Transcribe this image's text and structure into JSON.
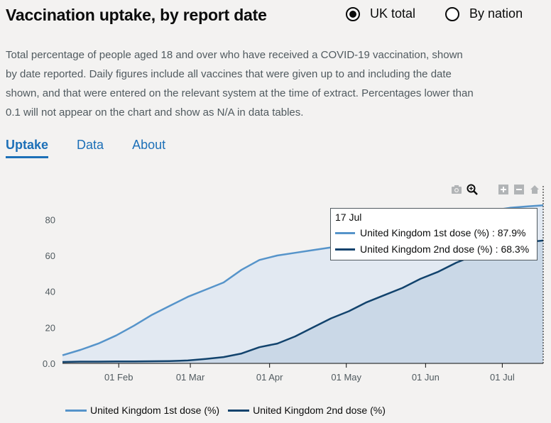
{
  "header": {
    "title": "Vaccination uptake, by report date",
    "radio_uk": "UK total",
    "radio_nation": "By nation"
  },
  "description": "Total percentage of people aged 18 and over who have received a COVID-19 vaccination, shown by date reported. Daily figures include all vaccines that were given up to and including the date shown, and that were entered on the relevant system at the time of extract. Percentages lower than 0.1 will not appear on the chart and show as N/A in data tables.",
  "tabs": [
    {
      "label": "Uptake",
      "active": true
    },
    {
      "label": "Data",
      "active": false
    },
    {
      "label": "About",
      "active": false
    }
  ],
  "toolbar": [
    "camera-icon",
    "zoom-icon",
    "zoom-in-icon",
    "zoom-out-icon",
    "home-icon"
  ],
  "tooltip": {
    "date": "17 Jul",
    "rows": [
      "United Kingdom 1st dose (%) : 87.9%",
      "United Kingdom 2nd dose (%) : 68.3%"
    ]
  },
  "colors": {
    "first_dose": "#5694ca",
    "second_dose": "#12436d",
    "first_fill": "#e2e9f2",
    "second_fill": "#c8d6e5"
  },
  "chart_data": {
    "type": "area",
    "x": [
      "2021-01-10",
      "2021-01-17",
      "2021-01-24",
      "2021-01-31",
      "2021-02-07",
      "2021-02-14",
      "2021-02-21",
      "2021-02-28",
      "2021-03-07",
      "2021-03-14",
      "2021-03-21",
      "2021-03-28",
      "2021-04-04",
      "2021-04-11",
      "2021-04-18",
      "2021-04-25",
      "2021-05-02",
      "2021-05-09",
      "2021-05-16",
      "2021-05-23",
      "2021-05-30",
      "2021-06-06",
      "2021-06-13",
      "2021-06-20",
      "2021-06-27",
      "2021-07-04",
      "2021-07-11",
      "2021-07-17"
    ],
    "series": [
      {
        "name": "United Kingdom 1st dose (%)",
        "values": [
          4.5,
          7.5,
          11,
          15.5,
          21,
          27,
          32,
          37,
          41,
          45,
          52,
          57.5,
          60,
          61.5,
          63,
          64.5,
          66.5,
          69,
          71,
          73,
          76,
          78.5,
          81,
          83,
          85,
          86.5,
          87.3,
          87.9
        ]
      },
      {
        "name": "United Kingdom 2nd dose (%)",
        "values": [
          0.8,
          1,
          1,
          1.1,
          1.1,
          1.2,
          1.3,
          1.6,
          2.5,
          3.5,
          5.5,
          9,
          11,
          15,
          20,
          25,
          29,
          34,
          38,
          42,
          47,
          51,
          56,
          60,
          63,
          65.5,
          67.5,
          68.3
        ]
      }
    ],
    "x_ticks": [
      "01 Feb",
      "01 Mar",
      "01 Apr",
      "01 May",
      "01 Jun",
      "01 Jul"
    ],
    "y_ticks": [
      "0.0",
      "20",
      "40",
      "60",
      "80"
    ],
    "ylim": [
      0,
      88
    ],
    "grid": false,
    "legend": "bottom"
  },
  "legend": [
    "United Kingdom 1st dose (%)",
    "United Kingdom 2nd dose (%)"
  ]
}
